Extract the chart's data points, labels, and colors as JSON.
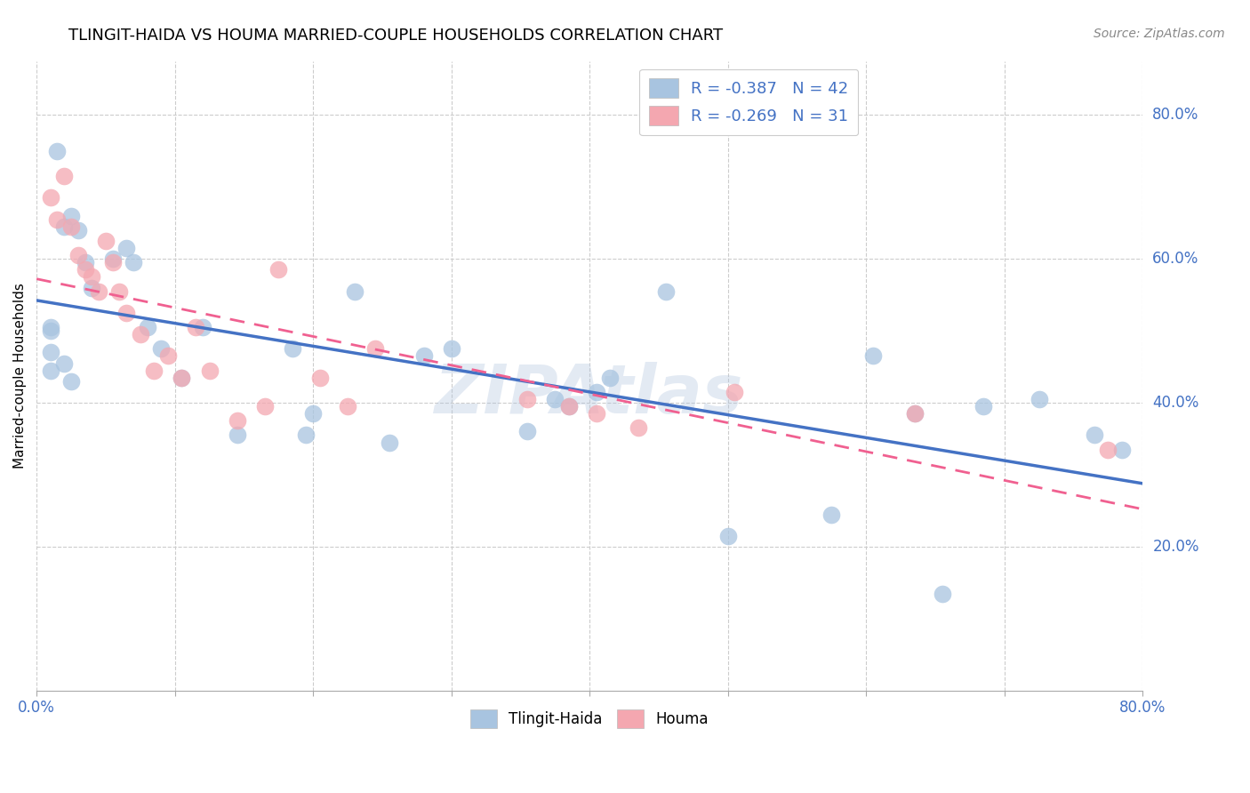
{
  "title": "TLINGIT-HAIDA VS HOUMA MARRIED-COUPLE HOUSEHOLDS CORRELATION CHART",
  "source": "Source: ZipAtlas.com",
  "ylabel": "Married-couple Households",
  "legend_label1": "Tlingit-Haida",
  "legend_label2": "Houma",
  "legend_R1": "R = -0.387",
  "legend_N1": "N = 42",
  "legend_R2": "R = -0.269",
  "legend_N2": "N = 31",
  "xlim": [
    0.0,
    0.8
  ],
  "ylim": [
    0.0,
    0.875
  ],
  "color_blue": "#a8c4e0",
  "color_pink": "#f4a7b0",
  "line_blue": "#4472c4",
  "line_pink": "#f06090",
  "tlingit_x": [
    0.015,
    0.02,
    0.025,
    0.03,
    0.035,
    0.01,
    0.01,
    0.01,
    0.01,
    0.02,
    0.025,
    0.04,
    0.055,
    0.065,
    0.07,
    0.08,
    0.09,
    0.105,
    0.12,
    0.145,
    0.185,
    0.195,
    0.2,
    0.23,
    0.255,
    0.28,
    0.3,
    0.355,
    0.375,
    0.385,
    0.405,
    0.415,
    0.455,
    0.5,
    0.575,
    0.605,
    0.635,
    0.655,
    0.685,
    0.725,
    0.765,
    0.785
  ],
  "tlingit_y": [
    0.75,
    0.645,
    0.66,
    0.64,
    0.595,
    0.5,
    0.47,
    0.445,
    0.505,
    0.455,
    0.43,
    0.56,
    0.6,
    0.615,
    0.595,
    0.505,
    0.475,
    0.435,
    0.505,
    0.355,
    0.475,
    0.355,
    0.385,
    0.555,
    0.345,
    0.465,
    0.475,
    0.36,
    0.405,
    0.395,
    0.415,
    0.435,
    0.555,
    0.215,
    0.245,
    0.465,
    0.385,
    0.135,
    0.395,
    0.405,
    0.355,
    0.335
  ],
  "houma_x": [
    0.01,
    0.015,
    0.02,
    0.025,
    0.03,
    0.035,
    0.04,
    0.045,
    0.05,
    0.055,
    0.06,
    0.065,
    0.075,
    0.085,
    0.095,
    0.105,
    0.115,
    0.125,
    0.145,
    0.165,
    0.175,
    0.205,
    0.225,
    0.245,
    0.355,
    0.385,
    0.405,
    0.435,
    0.505,
    0.635,
    0.775
  ],
  "houma_y": [
    0.685,
    0.655,
    0.715,
    0.645,
    0.605,
    0.585,
    0.575,
    0.555,
    0.625,
    0.595,
    0.555,
    0.525,
    0.495,
    0.445,
    0.465,
    0.435,
    0.505,
    0.445,
    0.375,
    0.395,
    0.585,
    0.435,
    0.395,
    0.475,
    0.405,
    0.395,
    0.385,
    0.365,
    0.415,
    0.385,
    0.335
  ]
}
